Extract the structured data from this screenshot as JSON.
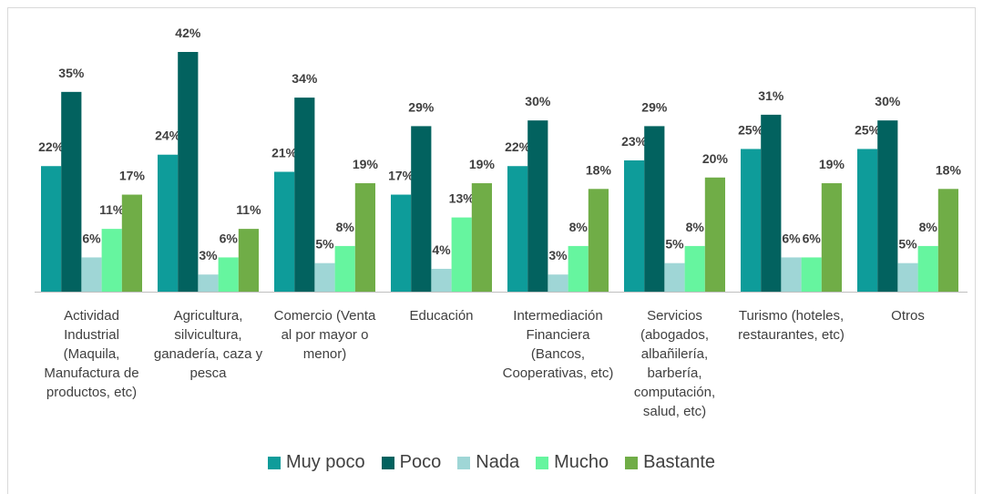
{
  "chart_data": {
    "type": "bar",
    "categories": [
      "Actividad Industrial (Maquila, Manufactura de productos, etc)",
      "Agricultura, silvicultura, ganadería, caza y pesca",
      "Comercio (Venta al por mayor o menor)",
      "Educación",
      "Intermediación Financiera (Bancos, Cooperativas, etc)",
      "Servicios (abogados, albañilería, barbería, computación, salud, etc)",
      "Turismo (hoteles, restaurantes, etc)",
      "Otros"
    ],
    "series": [
      {
        "name": "Muy poco",
        "color": "#0e9c9a",
        "values": [
          22,
          24,
          21,
          17,
          22,
          23,
          25,
          25
        ],
        "value_labels": [
          "22%",
          "24%",
          "21%",
          "17%",
          "22%",
          "23%",
          "25%",
          "25%"
        ]
      },
      {
        "name": "Poco",
        "color": "#02625f",
        "values": [
          35,
          42,
          34,
          29,
          30,
          29,
          31,
          30
        ],
        "value_labels": [
          "35%",
          "42%",
          "34%",
          "29%",
          "30%",
          "29%",
          "31%",
          "30%"
        ]
      },
      {
        "name": "Nada",
        "color": "#9fd6d6",
        "values": [
          6,
          3,
          5,
          4,
          3,
          5,
          6,
          5
        ],
        "value_labels": [
          "6%",
          "3%",
          "5%",
          "4%",
          "3%",
          "5%",
          "6%",
          "5%"
        ]
      },
      {
        "name": "Mucho",
        "color": "#66f59f",
        "values": [
          11,
          6,
          8,
          13,
          8,
          8,
          6,
          8
        ],
        "value_labels": [
          "11%",
          "6%",
          "8%",
          "13%",
          "8%",
          "8%",
          "6%",
          "8%"
        ]
      },
      {
        "name": "Bastante",
        "color": "#70ad47",
        "values": [
          17,
          11,
          19,
          19,
          18,
          20,
          19,
          18
        ],
        "value_labels": [
          "17%",
          "11%",
          "19%",
          "19%",
          "18%",
          "20%",
          "19%",
          "18%"
        ]
      }
    ]
  }
}
